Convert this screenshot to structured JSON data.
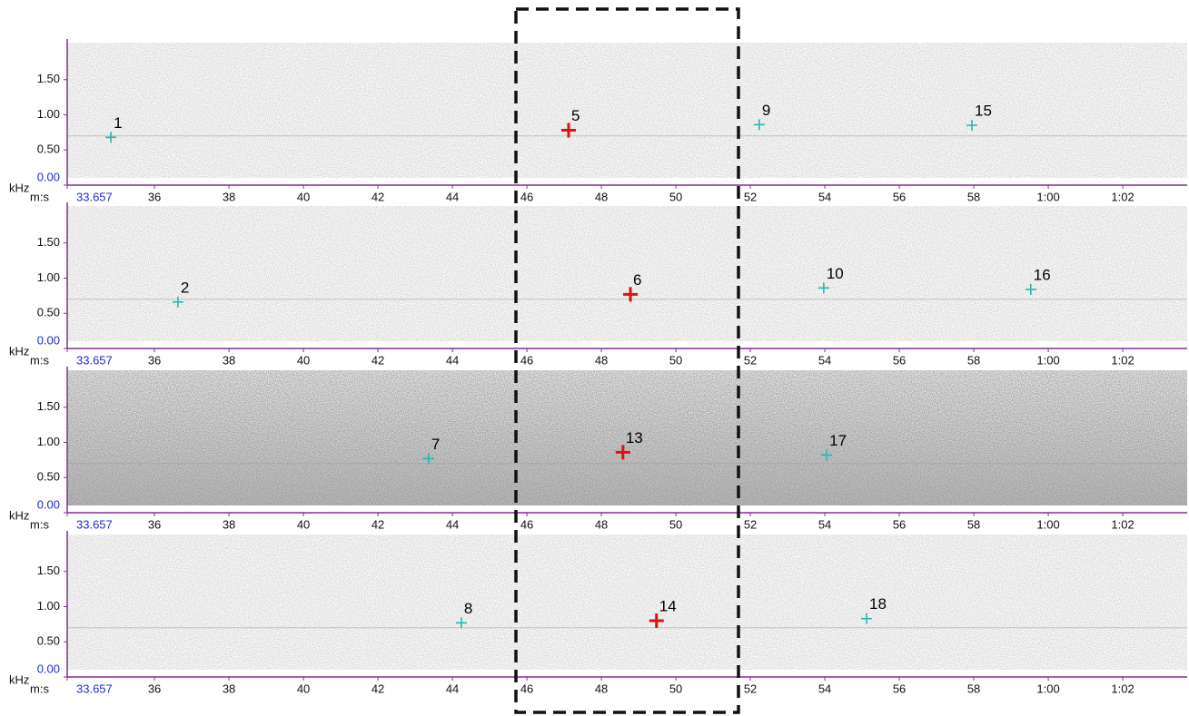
{
  "chart_data": [
    {
      "type": "scatter",
      "xlabel": "m:s",
      "ylabel": "kHz",
      "x": [
        34.83,
        47.12,
        52.24,
        57.95
      ],
      "y": [
        0.68,
        0.78,
        0.86,
        0.85
      ],
      "labels": [
        "1",
        "5",
        "9",
        "15"
      ],
      "colors": [
        "#2bb5b5",
        "#e01010",
        "#2bb5b5",
        "#2bb5b5"
      ],
      "xlim": [
        33.657,
        63.73
      ],
      "xticks": [
        33.657,
        36,
        38,
        40,
        42,
        44,
        46,
        48,
        50,
        52,
        54,
        56,
        58,
        {
          "value": 60,
          "label": "1:00"
        },
        {
          "value": 62,
          "label": "1:02"
        }
      ],
      "ylim": [
        0,
        2.0
      ],
      "yticks": [
        {
          "value": 0,
          "label": "0.00"
        },
        {
          "value": 0.5,
          "label": "0.50"
        },
        {
          "value": 1,
          "label": "1.00"
        },
        {
          "value": 1.5,
          "label": "1.50"
        }
      ]
    },
    {
      "type": "scatter",
      "xlabel": "m:s",
      "ylabel": "kHz",
      "x": [
        36.63,
        48.78,
        53.97,
        59.53
      ],
      "y": [
        0.66,
        0.77,
        0.86,
        0.84
      ],
      "labels": [
        "2",
        "6",
        "10",
        "16"
      ],
      "colors": [
        "#2bb5b5",
        "#e01010",
        "#2bb5b5",
        "#2bb5b5"
      ],
      "xlim": [
        33.657,
        63.73
      ],
      "xticks": [
        33.657,
        36,
        38,
        40,
        42,
        44,
        46,
        48,
        50,
        52,
        54,
        56,
        58,
        {
          "value": 60,
          "label": "1:00"
        },
        {
          "value": 62,
          "label": "1:02"
        }
      ],
      "ylim": [
        0,
        2.0
      ],
      "yticks": [
        {
          "value": 0,
          "label": "0.00"
        },
        {
          "value": 0.5,
          "label": "0.50"
        },
        {
          "value": 1,
          "label": "1.00"
        },
        {
          "value": 1.5,
          "label": "1.50"
        }
      ]
    },
    {
      "type": "scatter",
      "xlabel": "m:s",
      "ylabel": "kHz",
      "x": [
        43.36,
        48.58,
        54.05
      ],
      "y": [
        0.77,
        0.86,
        0.82
      ],
      "labels": [
        "7",
        "13",
        "17"
      ],
      "colors": [
        "#2bb5b5",
        "#e01010",
        "#2bb5b5"
      ],
      "xlim": [
        33.657,
        63.73
      ],
      "xticks": [
        33.657,
        36,
        38,
        40,
        42,
        44,
        46,
        48,
        50,
        52,
        54,
        56,
        58,
        {
          "value": 60,
          "label": "1:00"
        },
        {
          "value": 62,
          "label": "1:02"
        }
      ],
      "ylim": [
        0,
        2.0
      ],
      "yticks": [
        {
          "value": 0,
          "label": "0.00"
        },
        {
          "value": 0.5,
          "label": "0.50"
        },
        {
          "value": 1,
          "label": "1.00"
        },
        {
          "value": 1.5,
          "label": "1.50"
        }
      ]
    },
    {
      "type": "scatter",
      "xlabel": "m:s",
      "ylabel": "kHz",
      "x": [
        44.24,
        49.48,
        55.12
      ],
      "y": [
        0.77,
        0.8,
        0.83
      ],
      "labels": [
        "8",
        "14",
        "18"
      ],
      "colors": [
        "#2bb5b5",
        "#e01010",
        "#2bb5b5"
      ],
      "xlim": [
        33.657,
        63.73
      ],
      "xticks": [
        33.657,
        36,
        38,
        40,
        42,
        44,
        46,
        48,
        50,
        52,
        54,
        56,
        58,
        {
          "value": 60,
          "label": "1:00"
        },
        {
          "value": 62,
          "label": "1:02"
        }
      ],
      "ylim": [
        0,
        2.0
      ],
      "yticks": [
        {
          "value": 0,
          "label": "0.00"
        },
        {
          "value": 0.5,
          "label": "0.50"
        },
        {
          "value": 1,
          "label": "1.00"
        },
        {
          "value": 1.5,
          "label": "1.50"
        }
      ]
    }
  ]
}
